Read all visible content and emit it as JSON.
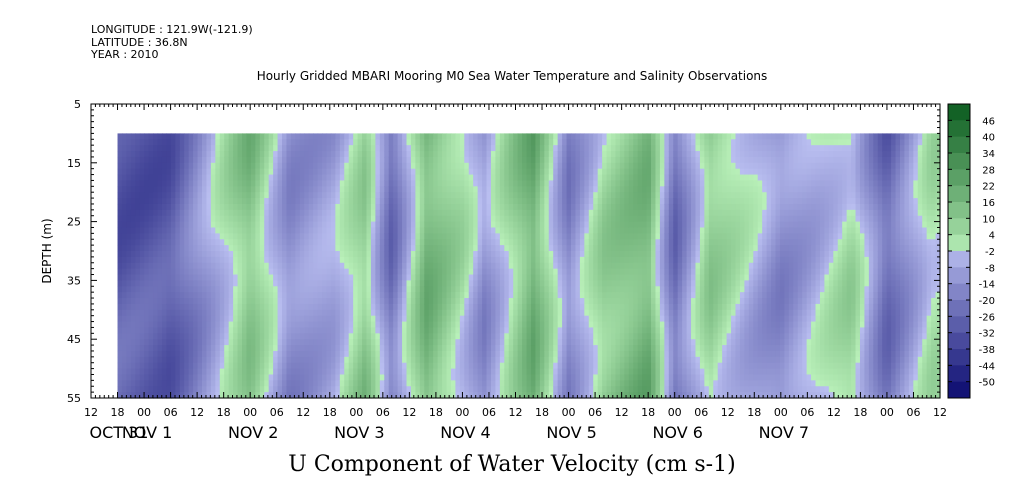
{
  "header": {
    "longitude": "LONGITUDE : 121.9W(-121.9)",
    "latitude": "LATITUDE : 36.8N",
    "year": "YEAR : 2010"
  },
  "chart_data": {
    "type": "heatmap",
    "title": "Hourly Gridded MBARI Mooring M0 Sea Water Temperature and Salinity Observations",
    "xlabel": "U Component of Water Velocity (cm s-1)",
    "ylabel": "DEPTH (m)",
    "ylim": [
      5,
      55
    ],
    "y_inverted": true,
    "y_ticks": [
      5,
      15,
      25,
      35,
      45,
      55
    ],
    "x_hour_ticks": [
      "12",
      "18",
      "00",
      "06",
      "12",
      "18",
      "00",
      "06",
      "12",
      "18",
      "00",
      "06",
      "12",
      "18",
      "00",
      "06",
      "12",
      "18",
      "00",
      "06",
      "12",
      "18",
      "00",
      "06",
      "12",
      "18",
      "00",
      "06",
      "12",
      "18",
      "00",
      "06",
      "12"
    ],
    "x_day_labels": [
      "OCT 31",
      "NOV 1",
      "NOV 2",
      "NOV 3",
      "NOV 4",
      "NOV 5",
      "NOV 6",
      "NOV 7"
    ],
    "x_start": "2010-10-30 12:00",
    "x_end": "2010-11-07 12:00",
    "data_start": "2010-10-30 18:00",
    "data_end": "2010-11-07 12:00",
    "depth_range": [
      10,
      55
    ],
    "approx_velocity_bands": [
      {
        "time": "2010-10-31 06:00",
        "u": -26
      },
      {
        "time": "2010-11-01 00:00",
        "u": 14
      },
      {
        "time": "2010-11-01 09:00",
        "u": -12
      },
      {
        "time": "2010-11-01 19:00",
        "u": -6
      },
      {
        "time": "2010-11-02 02:00",
        "u": 10
      },
      {
        "time": "2010-11-02 08:00",
        "u": -20
      },
      {
        "time": "2010-11-02 16:00",
        "u": 18
      },
      {
        "time": "2010-11-03 00:00",
        "u": 4
      },
      {
        "time": "2010-11-03 05:00",
        "u": -10
      },
      {
        "time": "2010-11-03 16:00",
        "u": 20
      },
      {
        "time": "2010-11-04 00:00",
        "u": -14
      },
      {
        "time": "2010-11-04 08:00",
        "u": 8
      },
      {
        "time": "2010-11-04 18:00",
        "u": 18
      },
      {
        "time": "2010-11-05 00:00",
        "u": -20
      },
      {
        "time": "2010-11-05 08:00",
        "u": 10
      },
      {
        "time": "2010-11-05 14:00",
        "u": 2
      },
      {
        "time": "2010-11-06 00:00",
        "u": -12
      },
      {
        "time": "2010-11-06 08:00",
        "u": -4
      },
      {
        "time": "2010-11-06 16:00",
        "u": 6
      },
      {
        "time": "2010-11-07 00:00",
        "u": -22
      },
      {
        "time": "2010-11-07 10:00",
        "u": 4
      }
    ],
    "colorbar": {
      "labels": [
        "46",
        "40",
        "34",
        "28",
        "22",
        "16",
        "10",
        "4",
        "-2",
        "-8",
        "-14",
        "-20",
        "-26",
        "-32",
        "-38",
        "-44",
        "-50"
      ],
      "min": -50,
      "max": 50
    }
  }
}
